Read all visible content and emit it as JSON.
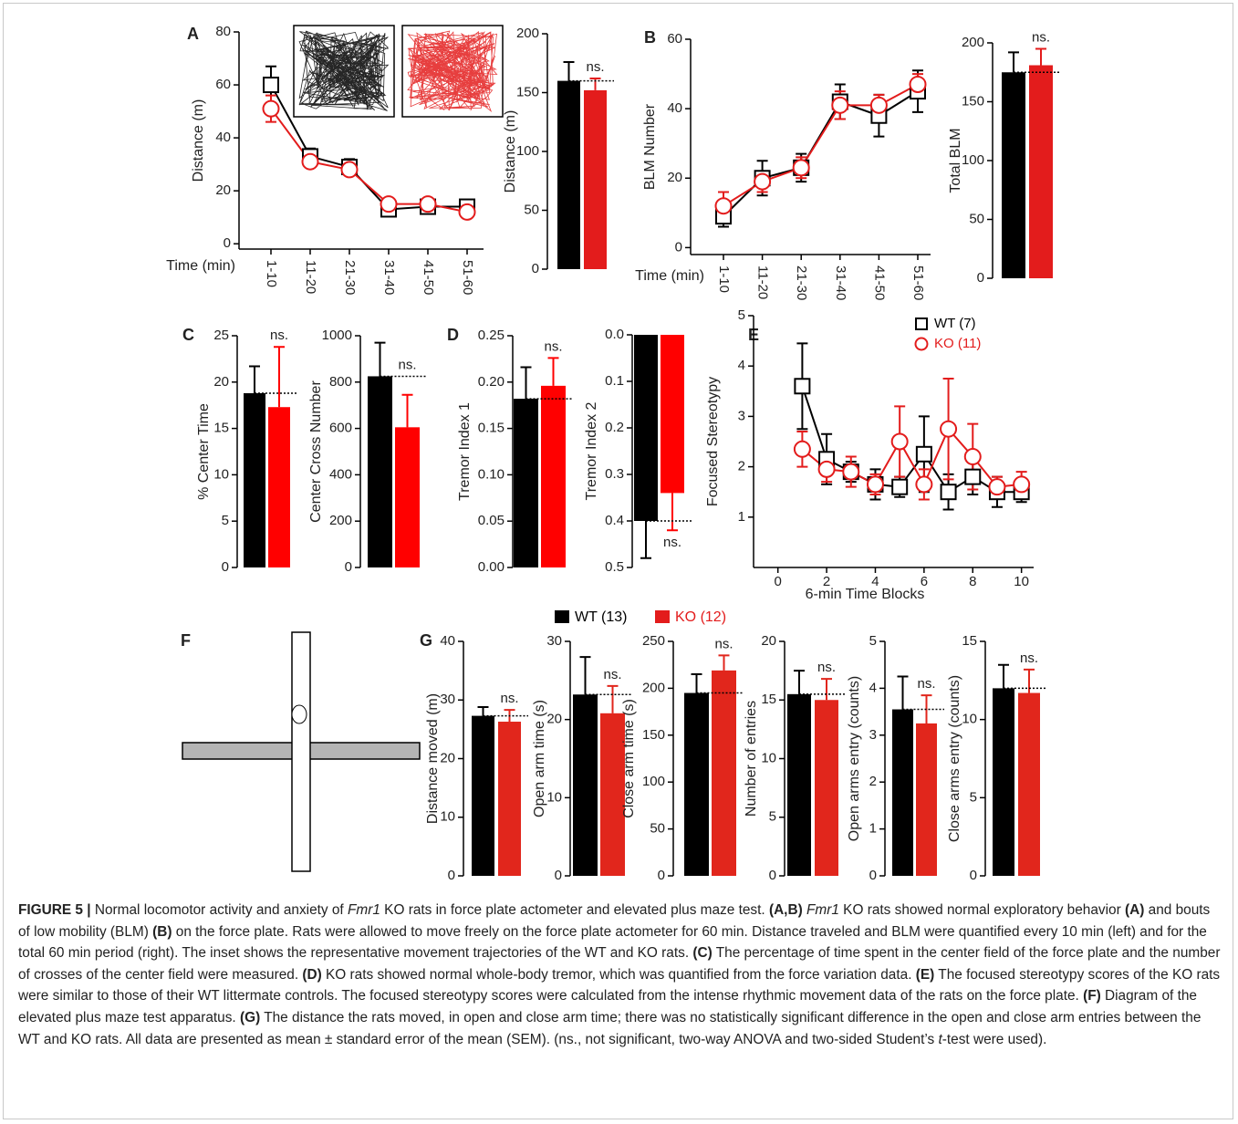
{
  "chart_data": [
    {
      "type": "line",
      "panel": "A",
      "ylabel": "Distance (m)",
      "xlabel": "Time (min)",
      "categories": [
        "1-10",
        "11-20",
        "21-30",
        "31-40",
        "41-50",
        "51-60"
      ],
      "ylim": [
        -2,
        80
      ],
      "yticks": [
        0,
        20,
        40,
        60,
        80
      ],
      "series": [
        {
          "color": "#000000",
          "marker": "square",
          "values": [
            60,
            33,
            29,
            13,
            14,
            14
          ],
          "errors": [
            7,
            3,
            3,
            2,
            2,
            2
          ]
        },
        {
          "color": "#e31c1c",
          "marker": "circle",
          "values": [
            51,
            31,
            28,
            15,
            15,
            12
          ],
          "errors": [
            5,
            2,
            2,
            1,
            1,
            2
          ]
        }
      ]
    },
    {
      "type": "bar",
      "ylabel": "Distance (m)",
      "ylim": [
        0,
        200
      ],
      "yticks": [
        0,
        50,
        100,
        150,
        200
      ],
      "values": [
        160,
        152
      ],
      "errors": [
        16,
        10
      ],
      "colors": [
        "#000000",
        "#e31c1c"
      ],
      "annotation": "ns."
    },
    {
      "type": "line",
      "panel": "B",
      "ylabel": "BLM Number",
      "xlabel": "Time (min)",
      "categories": [
        "1-10",
        "11-20",
        "21-30",
        "31-40",
        "41-50",
        "51-60"
      ],
      "ylim": [
        -2,
        60
      ],
      "yticks": [
        0,
        20,
        40,
        60
      ],
      "series": [
        {
          "color": "#000000",
          "marker": "square",
          "values": [
            9,
            20,
            23,
            42,
            38,
            45
          ],
          "errors": [
            3,
            5,
            4,
            5,
            6,
            6
          ]
        },
        {
          "color": "#e31c1c",
          "marker": "circle",
          "values": [
            12,
            19,
            23,
            41,
            41,
            47
          ],
          "errors": [
            4,
            3,
            3,
            4,
            3,
            3
          ]
        }
      ]
    },
    {
      "type": "bar",
      "ylabel": "Total BLM",
      "ylim": [
        0,
        200
      ],
      "yticks": [
        0,
        50,
        100,
        150,
        200
      ],
      "values": [
        175,
        181
      ],
      "errors": [
        17,
        14
      ],
      "colors": [
        "#000000",
        "#e31c1c"
      ],
      "annotation": "ns."
    },
    {
      "type": "bar",
      "panel": "C",
      "ylabel": "% Center Time",
      "ylim": [
        0,
        25
      ],
      "yticks": [
        0,
        5,
        10,
        15,
        20,
        25
      ],
      "values": [
        18.8,
        17.3
      ],
      "errors": [
        2.9,
        6.5
      ],
      "colors": [
        "#000000",
        "#ff0000"
      ],
      "annotation": "ns."
    },
    {
      "type": "bar",
      "ylabel": "Center Cross Number",
      "ylim": [
        0,
        1000
      ],
      "yticks": [
        0,
        200,
        400,
        600,
        800,
        1000
      ],
      "values": [
        825,
        605
      ],
      "errors": [
        145,
        140
      ],
      "colors": [
        "#000000",
        "#ff0000"
      ],
      "annotation": "ns."
    },
    {
      "type": "bar",
      "panel": "D",
      "ylabel": "Tremor Index 1",
      "ylim": [
        0,
        0.25
      ],
      "yticks": [
        {
          "value": 0,
          "label": "0.00"
        },
        0.05,
        {
          "value": 0.1,
          "label": "0.10"
        },
        0.15,
        {
          "value": 0.2,
          "label": "0.20"
        },
        0.25
      ],
      "values": [
        0.182,
        0.196
      ],
      "errors": [
        0.034,
        0.03
      ],
      "colors": [
        "#000000",
        "#ff0000"
      ],
      "annotation": "ns."
    },
    {
      "type": "bar",
      "ylabel": "Tremor Index 2",
      "ylim": [
        0.5,
        0
      ],
      "yticks": [
        {
          "value": 0,
          "label": "0.0"
        },
        0.1,
        0.2,
        0.3,
        0.4,
        0.5
      ],
      "values": [
        0.4,
        0.34
      ],
      "errors": [
        0.08,
        0.08
      ],
      "colors": [
        "#000000",
        "#ff0000"
      ],
      "annotation": "ns."
    },
    {
      "type": "line",
      "panel": "E",
      "ylabel": "Focused Stereotypy",
      "xlabel": "6-min Time Blocks",
      "x": [
        1,
        2,
        3,
        4,
        5,
        6,
        7,
        8,
        9,
        10
      ],
      "xlim": [
        -1,
        10.5
      ],
      "xticks": [
        0,
        2,
        4,
        6,
        8,
        10
      ],
      "ylim": [
        0,
        5
      ],
      "yticks": [
        1,
        2,
        3,
        4,
        5
      ],
      "series": [
        {
          "name": "WT (7)",
          "color": "#000000",
          "marker": "square",
          "values": [
            3.6,
            2.15,
            1.9,
            1.65,
            1.6,
            2.25,
            1.5,
            1.8,
            1.5,
            1.5
          ],
          "errors": [
            0.85,
            0.5,
            0.2,
            0.3,
            0.2,
            0.75,
            0.35,
            0.35,
            0.3,
            0.2
          ]
        },
        {
          "name": "KO (11)",
          "color": "#e31c1c",
          "marker": "circle",
          "values": [
            2.35,
            1.95,
            1.9,
            1.65,
            2.5,
            1.65,
            2.75,
            2.2,
            1.6,
            1.65
          ],
          "errors": [
            0.35,
            0.25,
            0.3,
            0.2,
            0.7,
            0.3,
            1.0,
            0.65,
            0.2,
            0.25
          ]
        }
      ]
    },
    {
      "type": "diagram",
      "panel": "F"
    },
    {
      "type": "bar",
      "panel": "G",
      "ylabel": "Distance moved (m)",
      "ylim": [
        0,
        40
      ],
      "yticks": [
        0,
        10,
        20,
        30,
        40
      ],
      "values": [
        27.3,
        26.3
      ],
      "errors": [
        1.5,
        2
      ],
      "colors": [
        "#000000",
        "#e1261c"
      ],
      "annotation": "ns."
    },
    {
      "type": "bar",
      "ylabel": "Open arm time (s)",
      "ylim": [
        0,
        30
      ],
      "yticks": [
        0,
        10,
        20,
        30
      ],
      "values": [
        23.2,
        20.8
      ],
      "errors": [
        4.8,
        3.5
      ],
      "colors": [
        "#000000",
        "#e1261c"
      ],
      "annotation": "ns."
    },
    {
      "type": "bar",
      "ylabel": "Close arm time (s)",
      "ylim": [
        0,
        250
      ],
      "yticks": [
        0,
        50,
        100,
        150,
        200,
        250
      ],
      "values": [
        195,
        219
      ],
      "errors": [
        20,
        16
      ],
      "colors": [
        "#000000",
        "#e1261c"
      ],
      "annotation": "ns."
    },
    {
      "type": "bar",
      "ylabel": "Number of entries",
      "ylim": [
        0,
        20
      ],
      "yticks": [
        0,
        5,
        10,
        15,
        20
      ],
      "values": [
        15.5,
        15.0
      ],
      "errors": [
        2,
        1.8
      ],
      "colors": [
        "#000000",
        "#e1261c"
      ],
      "annotation": "ns."
    },
    {
      "type": "bar",
      "ylabel": "Open arms entry (counts)",
      "ylim": [
        0,
        5
      ],
      "yticks": [
        0,
        1,
        2,
        3,
        4,
        5
      ],
      "values": [
        3.55,
        3.25
      ],
      "errors": [
        0.7,
        0.6
      ],
      "colors": [
        "#000000",
        "#e1261c"
      ],
      "annotation": "ns."
    },
    {
      "type": "bar",
      "ylabel": "Close arms entry (counts)",
      "ylim": [
        0,
        15
      ],
      "yticks": [
        0,
        5,
        10,
        15
      ],
      "values": [
        12,
        11.7
      ],
      "errors": [
        1.5,
        1.5
      ],
      "colors": [
        "#000000",
        "#e1261c"
      ],
      "annotation": "ns."
    }
  ],
  "legend": [
    {
      "name": "WT (13)",
      "color": "#000000"
    },
    {
      "name": "KO (12)",
      "color": "#e31c1c"
    }
  ],
  "caption": [
    "FIGURE 5 |",
    " Normal locomotor activity and anxiety of ",
    "Fmr1",
    " KO rats in force plate actometer and elevated plus maze test. ",
    "(A,B) ",
    "Fmr1",
    " KO rats showed normal exploratory behavior ",
    "(A)",
    " and bouts of low mobility (BLM) ",
    "(B)",
    " on the force plate. Rats were allowed to move freely on the force plate actometer for 60 min. Distance traveled and BLM were quantified every 10 min (left) and for the total 60 min period (right). The inset shows the representative movement trajectories of the WT and KO rats. ",
    "(C)",
    " The percentage of time spent in the center field of the force plate and the number of crosses of the center field were measured. ",
    "(D)",
    " KO rats showed normal whole-body tremor, which was quantified from the force variation data. ",
    "(E)",
    " The focused stereotypy scores of the KO rats were similar to those of their WT littermate controls. The focused stereotypy scores were calculated from the intense rhythmic movement data of the rats on the force plate. ",
    "(F)",
    " Diagram of the elevated plus maze test apparatus. ",
    "(G)",
    " The distance the rats moved, in open and close arm time; there was no statistically significant difference in the open and close arm entries between the WT and KO rats. All data are presented as mean ± standard error of the mean (SEM). (ns., not significant, two-way ANOVA and two-sided Student’s ",
    "t",
    "-test were used)."
  ]
}
